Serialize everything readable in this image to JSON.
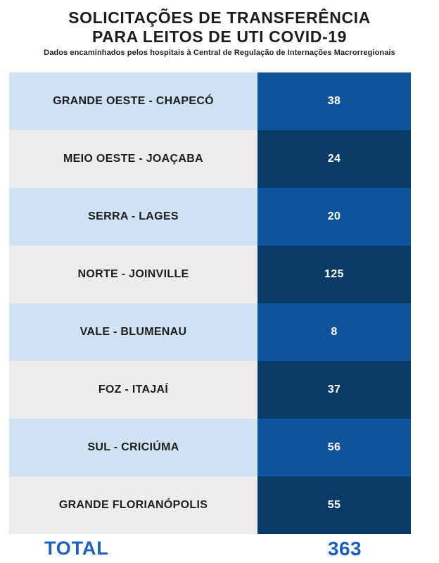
{
  "header": {
    "title_line1": "SOLICITAÇÕES DE TRANSFERÊNCIA",
    "title_line2": "PARA LEITOS DE UTI COVID-19",
    "subtitle": "Dados encaminhados pelos hospitais à Central de Regulação de Internações Macrorregionais"
  },
  "table": {
    "rows": [
      {
        "label": "GRANDE OESTE - CHAPECÓ",
        "value": "38"
      },
      {
        "label": "MEIO OESTE - JOAÇABA",
        "value": "24"
      },
      {
        "label": "SERRA - LAGES",
        "value": "20"
      },
      {
        "label": "NORTE - JOINVILLE",
        "value": "125"
      },
      {
        "label": "VALE - BLUMENAU",
        "value": "8"
      },
      {
        "label": "FOZ - ITAJAÍ",
        "value": "37"
      },
      {
        "label": "SUL - CRICIÚMA",
        "value": "56"
      },
      {
        "label": "GRANDE FLORIANÓPOLIS",
        "value": "55"
      }
    ],
    "total_label": "TOTAL",
    "total_value": "363"
  },
  "colors": {
    "title_text": "#1D1D1B",
    "row_label_light_blue": "#CFE2F3",
    "row_label_light_gray": "#ECECEC",
    "value_medium_blue": "#0E549C",
    "value_dark_navy": "#0A3A66",
    "row_value_text": "#FFFFFF",
    "total_text_blue": "#1E5FC6"
  },
  "chart_data": {
    "type": "table",
    "title": "SOLICITAÇÕES DE TRANSFERÊNCIA PARA LEITOS DE UTI COVID-19",
    "subtitle": "Dados encaminhados pelos hospitais à Central de Regulação de Internações Macrorregionais",
    "categories": [
      "GRANDE OESTE - CHAPECÓ",
      "MEIO OESTE - JOAÇABA",
      "SERRA - LAGES",
      "NORTE - JOINVILLE",
      "VALE - BLUMENAU",
      "FOZ - ITAJAÍ",
      "SUL - CRICIÚMA",
      "GRANDE FLORIANÓPOLIS"
    ],
    "values": [
      38,
      24,
      20,
      125,
      8,
      37,
      56,
      55
    ],
    "total": 363
  }
}
